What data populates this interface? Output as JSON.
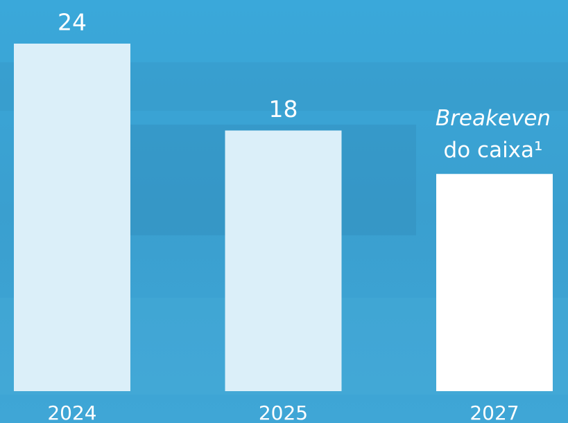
{
  "chart_data": {
    "type": "bar",
    "categories": [
      "2024",
      "2025",
      "2027"
    ],
    "values": [
      24,
      18,
      15
    ],
    "value_labels": [
      "24",
      "18",
      null
    ],
    "colors": [
      "#dbeff9",
      "#dbeff9",
      "#ffffff"
    ],
    "annotation": [
      "Breakeven",
      "do caixa¹"
    ]
  }
}
